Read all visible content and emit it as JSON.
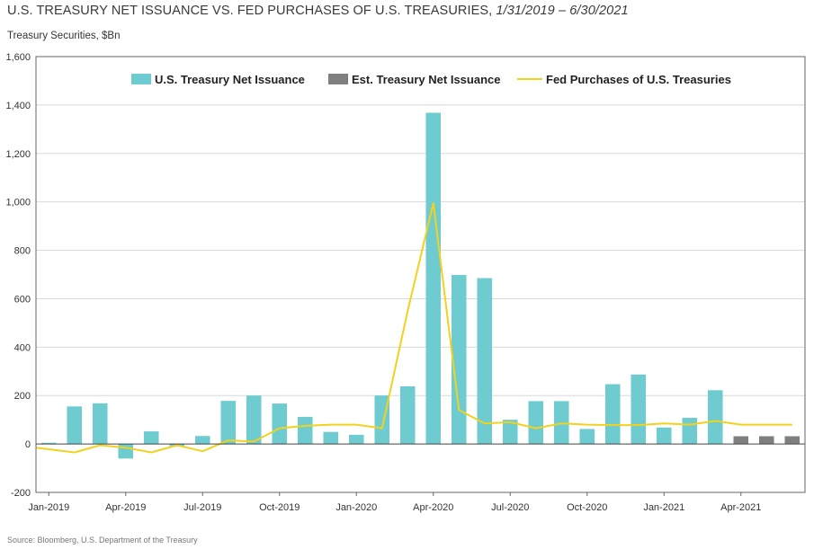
{
  "title": "U.S. TREASURY NET ISSUANCE VS. FED PURCHASES OF U.S. TREASURIES,",
  "period": "1/31/2019 – 6/30/2021",
  "unit_label": "Treasury Securities, $Bn",
  "source": "Source: Bloomberg, U.S. Department of the Treasury",
  "colors": {
    "issuance": "#6ecbcf",
    "estimated": "#7f7f7f",
    "fed": "#f2d21f",
    "grid": "#d9d9d9",
    "axis": "#666666"
  },
  "chart_data": {
    "type": "bar",
    "x": [
      "2019-01",
      "2019-02",
      "2019-03",
      "2019-04",
      "2019-05",
      "2019-06",
      "2019-07",
      "2019-08",
      "2019-09",
      "2019-10",
      "2019-11",
      "2019-12",
      "2020-01",
      "2020-02",
      "2020-03",
      "2020-04",
      "2020-05",
      "2020-06",
      "2020-07",
      "2020-08",
      "2020-09",
      "2020-10",
      "2020-11",
      "2020-12",
      "2021-01",
      "2021-02",
      "2021-03",
      "2021-04",
      "2021-05",
      "2021-06"
    ],
    "x_tick_labels": [
      "Jan-2019",
      "Apr-2019",
      "Jul-2019",
      "Oct-2019",
      "Jan-2020",
      "Apr-2020",
      "Jul-2020",
      "Oct-2020",
      "Jan-2021",
      "Apr-2021"
    ],
    "ylim": [
      -200,
      1600
    ],
    "y_ticks": [
      "-200",
      "0",
      "200",
      "400",
      "600",
      "800",
      "1,000",
      "1,200",
      "1,400",
      "1,600"
    ],
    "grid": true,
    "legend_position": "top",
    "series": [
      {
        "name": "U.S. Treasury Net Issuance",
        "kind": "bar",
        "values": [
          5,
          155,
          168,
          -60,
          52,
          -10,
          33,
          178,
          200,
          167,
          112,
          50,
          38,
          200,
          238,
          1368,
          698,
          685,
          100,
          177,
          177,
          62,
          247,
          287,
          68,
          108,
          222,
          null,
          null,
          null
        ]
      },
      {
        "name": "Est. Treasury Net Issuance",
        "kind": "bar",
        "values": [
          null,
          null,
          null,
          null,
          null,
          null,
          null,
          null,
          null,
          null,
          null,
          null,
          null,
          null,
          null,
          null,
          null,
          null,
          null,
          null,
          null,
          null,
          null,
          null,
          null,
          null,
          null,
          32,
          32,
          32
        ]
      },
      {
        "name": "Fed Purchases of U.S. Treasuries",
        "kind": "line",
        "values": [
          -15,
          -35,
          -5,
          -15,
          -35,
          -5,
          -30,
          15,
          10,
          65,
          75,
          80,
          80,
          65,
          550,
          995,
          140,
          85,
          90,
          65,
          85,
          80,
          78,
          78,
          85,
          80,
          95,
          80,
          80,
          80
        ]
      }
    ]
  }
}
